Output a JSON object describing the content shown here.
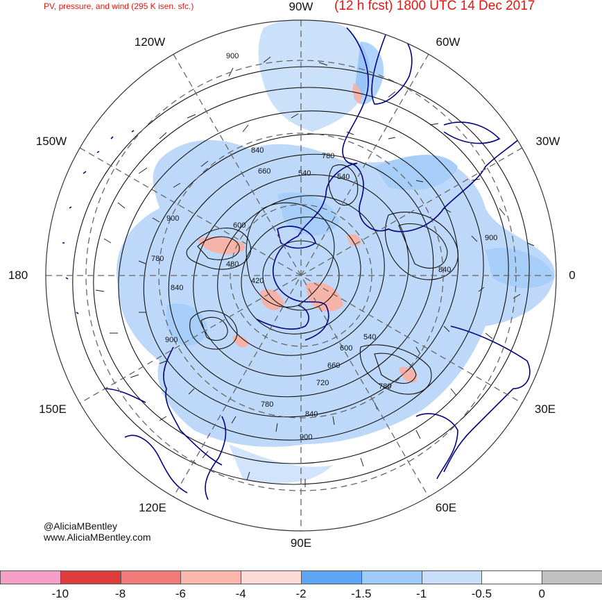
{
  "title": {
    "left": "PV, pressure, and wind (295 K isen. sfc.)",
    "right": "(12 h fcst) 1800 UTC 14 Dec 2017"
  },
  "longitude_labels": {
    "n90w": "90W",
    "n60w": "60W",
    "n30w": "30W",
    "e0": "0",
    "s30e": "30E",
    "s60e": "60E",
    "s90e": "90E",
    "s120e": "120E",
    "s150e": "150E",
    "w180": "180",
    "n150w": "150W",
    "n120w": "120W"
  },
  "contour_labels": [
    "900",
    "840",
    "780",
    "720",
    "660",
    "600",
    "540",
    "480",
    "420",
    "900",
    "840",
    "780",
    "780",
    "720",
    "660",
    "600",
    "540",
    "840",
    "900",
    "900",
    "840",
    "780",
    "720",
    "660",
    "600",
    "540"
  ],
  "credit": {
    "handle": "@AliciaMBentley",
    "website": "www.AliciaMBentley.com"
  },
  "colorbar": {
    "colors": [
      "#f4a0c6",
      "#de3b3b",
      "#f17a79",
      "#fab5ad",
      "#fcdad5",
      "#5fa5f5",
      "#9ec9f8",
      "#c8defb",
      "#ffffff",
      "#c0c0c0"
    ],
    "ticks": [
      "-10",
      "-8",
      "-6",
      "-4",
      "-2",
      "-1.5",
      "-1",
      "-0.5",
      "0"
    ]
  },
  "colors": {
    "title": "#e8140f",
    "coastline": "#000080",
    "contour": "#111111",
    "pv_blue": "#a8ccf6",
    "pv_red": "#f3b0a8"
  }
}
